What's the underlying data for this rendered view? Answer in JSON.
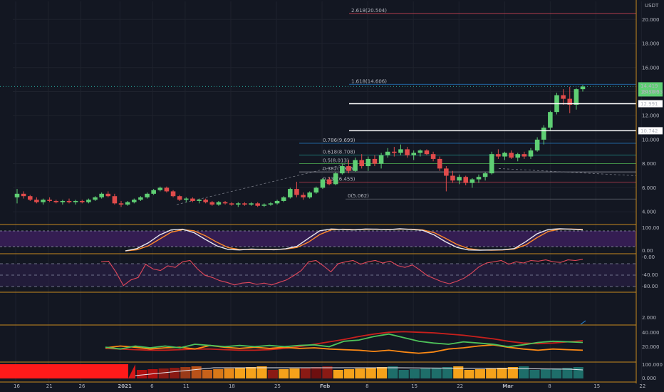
{
  "colors": {
    "background": "#131722",
    "grid": "#1e222d",
    "up": "#5fcf74",
    "down": "#e04b4b",
    "panel_border": "#c78a1e",
    "stoch_fill": "#3b1f5a",
    "stoch_k": "#e8e8f0",
    "stoch_d": "#ff8a2a",
    "williams": "#e0485a",
    "adx": "#c8201c",
    "di_plus": "#4ec25a",
    "di_minus": "#ff8a14",
    "price_line": "#26a69a"
  },
  "chart_data": {
    "type": "candlestick",
    "currency_label": "USDT",
    "x_ticks": [
      "16",
      "21",
      "26",
      "2021",
      "6",
      "11",
      "18",
      "25",
      "Feb",
      "8",
      "15",
      "22",
      "Mar",
      "8",
      "15",
      "22"
    ],
    "y_ticks": [
      "20.000",
      "18.000",
      "16.000",
      "14.000",
      "12.000",
      "10.000",
      "8.000",
      "6.000",
      "4.000"
    ],
    "ylim": [
      3.0,
      21.5
    ],
    "candles": [
      [
        5.2,
        5.9,
        4.7,
        5.5
      ],
      [
        5.5,
        5.7,
        5.1,
        5.3
      ],
      [
        5.3,
        5.4,
        4.9,
        5.0
      ],
      [
        5.0,
        5.2,
        4.7,
        4.8
      ],
      [
        4.8,
        5.1,
        4.6,
        5.0
      ],
      [
        5.0,
        5.2,
        4.8,
        4.9
      ],
      [
        4.9,
        5.0,
        4.7,
        4.8
      ],
      [
        4.8,
        5.0,
        4.6,
        4.9
      ],
      [
        4.9,
        5.1,
        4.7,
        4.8
      ],
      [
        4.8,
        5.0,
        4.6,
        4.9
      ],
      [
        4.9,
        5.0,
        4.7,
        4.8
      ],
      [
        4.8,
        5.1,
        4.7,
        5.0
      ],
      [
        5.0,
        5.3,
        4.9,
        5.2
      ],
      [
        5.2,
        5.6,
        5.1,
        5.5
      ],
      [
        5.5,
        5.7,
        5.2,
        5.3
      ],
      [
        5.3,
        5.5,
        4.6,
        4.7
      ],
      [
        4.7,
        4.9,
        4.4,
        4.6
      ],
      [
        4.6,
        4.9,
        4.5,
        4.8
      ],
      [
        4.8,
        5.1,
        4.7,
        5.0
      ],
      [
        5.0,
        5.3,
        4.9,
        5.2
      ],
      [
        5.2,
        5.6,
        5.1,
        5.5
      ],
      [
        5.5,
        5.9,
        5.4,
        5.8
      ],
      [
        5.8,
        6.1,
        5.7,
        6.0
      ],
      [
        6.0,
        6.1,
        5.6,
        5.7
      ],
      [
        5.7,
        5.8,
        5.2,
        5.3
      ],
      [
        5.3,
        5.4,
        4.9,
        5.0
      ],
      [
        5.0,
        5.2,
        4.8,
        5.1
      ],
      [
        5.1,
        5.2,
        4.8,
        4.9
      ],
      [
        4.9,
        5.1,
        4.7,
        5.0
      ],
      [
        5.0,
        5.1,
        4.7,
        4.8
      ],
      [
        4.8,
        4.9,
        4.5,
        4.6
      ],
      [
        4.6,
        4.9,
        4.5,
        4.8
      ],
      [
        4.8,
        4.9,
        4.6,
        4.7
      ],
      [
        4.7,
        4.8,
        4.5,
        4.6
      ],
      [
        4.6,
        4.8,
        4.4,
        4.7
      ],
      [
        4.7,
        4.8,
        4.5,
        4.6
      ],
      [
        4.6,
        4.8,
        4.5,
        4.7
      ],
      [
        4.7,
        4.8,
        4.4,
        4.5
      ],
      [
        4.5,
        4.7,
        4.4,
        4.6
      ],
      [
        4.6,
        4.8,
        4.5,
        4.7
      ],
      [
        4.7,
        5.0,
        4.6,
        4.9
      ],
      [
        4.9,
        5.3,
        4.8,
        5.2
      ],
      [
        5.2,
        6.0,
        5.1,
        5.9
      ],
      [
        5.9,
        6.5,
        5.2,
        5.4
      ],
      [
        5.4,
        5.6,
        5.0,
        5.2
      ],
      [
        5.2,
        5.7,
        5.1,
        5.6
      ],
      [
        5.6,
        6.1,
        5.5,
        6.0
      ],
      [
        6.0,
        6.8,
        5.9,
        6.7
      ],
      [
        6.7,
        6.9,
        6.2,
        6.3
      ],
      [
        6.3,
        7.3,
        6.2,
        7.2
      ],
      [
        7.2,
        8.0,
        7.1,
        7.8
      ],
      [
        7.8,
        8.3,
        7.2,
        7.4
      ],
      [
        7.4,
        8.5,
        7.3,
        8.3
      ],
      [
        8.3,
        8.8,
        7.6,
        7.8
      ],
      [
        7.8,
        8.6,
        7.4,
        8.4
      ],
      [
        8.4,
        8.7,
        7.8,
        8.0
      ],
      [
        8.0,
        8.9,
        7.6,
        8.7
      ],
      [
        8.7,
        9.3,
        8.5,
        9.0
      ],
      [
        9.0,
        9.4,
        8.6,
        8.9
      ],
      [
        8.9,
        9.6,
        8.7,
        9.2
      ],
      [
        9.2,
        9.4,
        8.5,
        8.7
      ],
      [
        8.7,
        9.1,
        8.3,
        8.9
      ],
      [
        8.9,
        9.2,
        8.6,
        9.1
      ],
      [
        9.1,
        9.2,
        8.7,
        8.8
      ],
      [
        8.8,
        9.0,
        8.2,
        8.4
      ],
      [
        8.4,
        8.6,
        7.4,
        7.6
      ],
      [
        7.6,
        7.8,
        5.7,
        7.0
      ],
      [
        7.0,
        7.4,
        6.4,
        6.6
      ],
      [
        6.6,
        7.1,
        6.3,
        6.9
      ],
      [
        6.9,
        7.0,
        6.2,
        6.4
      ],
      [
        6.4,
        6.8,
        6.0,
        6.7
      ],
      [
        6.7,
        7.1,
        6.4,
        6.9
      ],
      [
        6.9,
        7.3,
        6.6,
        7.2
      ],
      [
        7.2,
        9.0,
        7.1,
        8.8
      ],
      [
        8.8,
        9.2,
        8.4,
        8.6
      ],
      [
        8.6,
        9.0,
        8.3,
        8.9
      ],
      [
        8.9,
        9.1,
        8.4,
        8.5
      ],
      [
        8.5,
        8.9,
        8.2,
        8.8
      ],
      [
        8.8,
        9.0,
        8.4,
        8.6
      ],
      [
        8.6,
        9.3,
        8.4,
        9.1
      ],
      [
        9.1,
        10.2,
        9.0,
        10.0
      ],
      [
        10.0,
        11.2,
        9.6,
        11.0
      ],
      [
        11.0,
        12.4,
        10.8,
        12.3
      ],
      [
        12.3,
        13.9,
        12.1,
        13.7
      ],
      [
        13.7,
        14.2,
        12.9,
        13.4
      ],
      [
        13.4,
        14.4,
        12.2,
        12.9
      ],
      [
        12.9,
        14.3,
        12.5,
        14.2
      ],
      [
        14.2,
        14.55,
        14.0,
        14.42
      ]
    ],
    "fib_levels": [
      {
        "label": "2.618(20.504)",
        "value": 20.504,
        "color": "#e0485a"
      },
      {
        "label": "1.618(14.606)",
        "value": 14.606,
        "color": "#2a8fe6"
      },
      {
        "label": "0.786(9.699)",
        "value": 9.699,
        "color": "#2a8fe6"
      },
      {
        "label": "0.618(8.708)",
        "value": 8.708,
        "color": "#26a69a"
      },
      {
        "label": "0.5(8.013)",
        "value": 8.013,
        "color": "#4caf50"
      },
      {
        "label": "0.382(7.316)",
        "value": 7.316,
        "color": "#b2b5be"
      },
      {
        "label": "0.236(6.455)",
        "value": 6.455,
        "color": "#e0485a"
      },
      {
        "label": "0(5.062)",
        "value": 5.062,
        "color": "#787b86"
      }
    ],
    "horizontal_levels": [
      {
        "label": "12.991",
        "value": 12.991
      },
      {
        "label": "10.742",
        "value": 10.742
      }
    ],
    "last_price": {
      "label": "14.419",
      "value": 14.419,
      "countdown": "15:50:53"
    },
    "indicators": {
      "stoch_axis": [
        "100.00",
        "0.00"
      ],
      "williams_axis": [
        "-0.00",
        "-40.00",
        "-80.00"
      ],
      "blank_axis": [
        "2.000"
      ],
      "dmi_axis": [
        "40.000",
        "20.000"
      ],
      "hist_axis": [
        "100.000",
        "0.000"
      ],
      "stoch_k": [
        0,
        10,
        35,
        70,
        92,
        95,
        80,
        50,
        22,
        6,
        4,
        8,
        6,
        5,
        9,
        20,
        55,
        88,
        96,
        94,
        92,
        96,
        95,
        93,
        97,
        94,
        90,
        70,
        40,
        15,
        4,
        3,
        4,
        5,
        10,
        40,
        75,
        94,
        97,
        95,
        92
      ],
      "stoch_d": [
        0,
        5,
        22,
        52,
        82,
        93,
        88,
        66,
        38,
        14,
        6,
        6,
        7,
        6,
        8,
        15,
        38,
        72,
        92,
        95,
        93,
        94,
        95,
        94,
        95,
        95,
        92,
        80,
        55,
        28,
        10,
        4,
        3,
        4,
        8,
        26,
        58,
        86,
        95,
        96,
        94
      ],
      "williams": [
        -12,
        -10,
        -45,
        -88,
        -70,
        -62,
        -20,
        -35,
        -40,
        -25,
        -30,
        -12,
        -8,
        -35,
        -55,
        -62,
        -72,
        -78,
        -86,
        -80,
        -78,
        -84,
        -80,
        -86,
        -78,
        -70,
        -56,
        -40,
        -12,
        -8,
        -25,
        -44,
        -18,
        -12,
        -8,
        -20,
        -12,
        -8,
        -16,
        -10,
        -24,
        -30,
        -22,
        -38,
        -56,
        -66,
        -76,
        -82,
        -74,
        -64,
        -48,
        -28,
        -16,
        -12,
        -8,
        -20,
        -12,
        -16,
        -8,
        -10,
        -6,
        -12,
        -14,
        -6,
        -8,
        -4
      ],
      "adx": [
        18,
        17,
        16,
        15,
        15,
        16,
        17,
        17,
        16,
        15,
        15,
        16,
        18,
        21,
        25,
        29,
        33,
        38,
        42,
        45,
        46,
        45,
        44,
        42,
        40,
        37,
        34,
        30,
        27,
        26,
        27,
        29,
        31
      ],
      "di_plus": [
        20,
        17,
        22,
        19,
        22,
        19,
        25,
        23,
        21,
        23,
        21,
        23,
        21,
        23,
        24,
        21,
        30,
        32,
        38,
        42,
        36,
        30,
        27,
        25,
        29,
        27,
        25,
        21,
        24,
        28,
        30,
        29,
        28
      ],
      "di_minus": [
        19,
        22,
        20,
        17,
        19,
        20,
        17,
        23,
        20,
        18,
        20,
        18,
        20,
        18,
        19,
        17,
        16,
        15,
        13,
        15,
        12,
        10,
        12,
        17,
        19,
        22,
        24,
        20,
        17,
        15,
        17,
        16,
        15
      ]
    }
  }
}
